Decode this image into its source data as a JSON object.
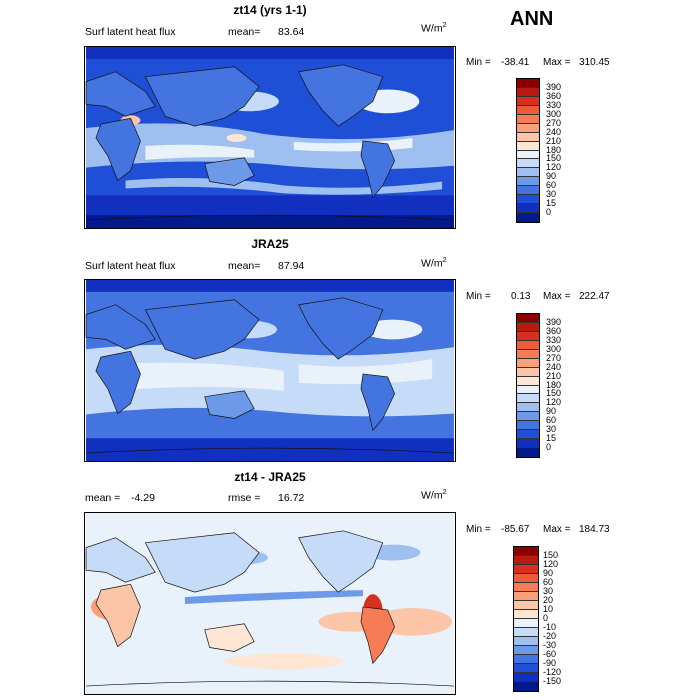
{
  "season": "ANN",
  "panels": [
    {
      "title": "zt14 (yrs 1-1)",
      "variable": "Surf latent heat flux",
      "stat1_label": "mean=",
      "stat1_value": "83.64",
      "units": "W/m",
      "units_sup": "2",
      "min_label": "Min =",
      "min_value": "-38.41",
      "max_label": "Max =",
      "max_value": "310.45",
      "colorbar": {
        "ticks": [
          "390",
          "360",
          "330",
          "300",
          "270",
          "240",
          "210",
          "180",
          "150",
          "120",
          "90",
          "60",
          "30",
          "15",
          "0"
        ],
        "colors": [
          "#8b0000",
          "#b81a0f",
          "#d7301f",
          "#ef5a37",
          "#f67c55",
          "#f9a07a",
          "#fcc5a8",
          "#fde6d4",
          "#e9f1fb",
          "#c6dbf7",
          "#9ebff0",
          "#6d9ae8",
          "#4474e0",
          "#1f4fd6",
          "#1130c0",
          "#021a8c"
        ]
      }
    },
    {
      "title": "JRA25",
      "variable": "Surf latent heat flux",
      "stat1_label": "mean=",
      "stat1_value": "87.94",
      "units": "W/m",
      "units_sup": "2",
      "min_label": "Min =",
      "min_value": "0.13",
      "max_label": "Max =",
      "max_value": "222.47",
      "colorbar": {
        "ticks": [
          "390",
          "360",
          "330",
          "300",
          "270",
          "240",
          "210",
          "180",
          "150",
          "120",
          "90",
          "60",
          "30",
          "15",
          "0"
        ],
        "colors": [
          "#8b0000",
          "#b81a0f",
          "#d7301f",
          "#ef5a37",
          "#f67c55",
          "#f9a07a",
          "#fcc5a8",
          "#fde6d4",
          "#e9f1fb",
          "#c6dbf7",
          "#9ebff0",
          "#6d9ae8",
          "#4474e0",
          "#1f4fd6",
          "#1130c0",
          "#021a8c"
        ]
      }
    },
    {
      "title": "zt14 - JRA25",
      "variable": "mean =",
      "stat1_label": "-4.29",
      "stat2_label": "rmse =",
      "stat2_value": "16.72",
      "units": "W/m",
      "units_sup": "2",
      "min_label": "Min =",
      "min_value": "-85.67",
      "max_label": "Max =",
      "max_value": "184.73",
      "colorbar": {
        "ticks": [
          "150",
          "120",
          "90",
          "60",
          "30",
          "20",
          "10",
          "0",
          "-10",
          "-20",
          "-30",
          "-60",
          "-90",
          "-120",
          "-150"
        ],
        "colors": [
          "#8b0000",
          "#b81a0f",
          "#d7301f",
          "#ef5a37",
          "#f67c55",
          "#f9a07a",
          "#fcc5a8",
          "#fde6d4",
          "#e9f1fb",
          "#c6dbf7",
          "#9ebff0",
          "#6d9ae8",
          "#4474e0",
          "#1f4fd6",
          "#1130c0",
          "#021a8c"
        ]
      }
    }
  ],
  "chart_data": [
    {
      "type": "heatmap",
      "title": "zt14 (yrs 1-1)",
      "subtitle": "Surf latent heat flux",
      "mean": 83.64,
      "units": "W/m2",
      "min": -38.41,
      "max": 310.45,
      "contour_levels": [
        0,
        15,
        30,
        60,
        90,
        120,
        150,
        180,
        210,
        240,
        270,
        300,
        330,
        360,
        390
      ]
    },
    {
      "type": "heatmap",
      "title": "JRA25",
      "subtitle": "Surf latent heat flux",
      "mean": 87.94,
      "units": "W/m2",
      "min": 0.13,
      "max": 222.47,
      "contour_levels": [
        0,
        15,
        30,
        60,
        90,
        120,
        150,
        180,
        210,
        240,
        270,
        300,
        330,
        360,
        390
      ]
    },
    {
      "type": "heatmap",
      "title": "zt14 - JRA25",
      "mean": -4.29,
      "rmse": 16.72,
      "units": "W/m2",
      "min": -85.67,
      "max": 184.73,
      "contour_levels": [
        -150,
        -120,
        -90,
        -60,
        -30,
        -20,
        -10,
        0,
        10,
        20,
        30,
        60,
        90,
        120,
        150
      ]
    }
  ]
}
